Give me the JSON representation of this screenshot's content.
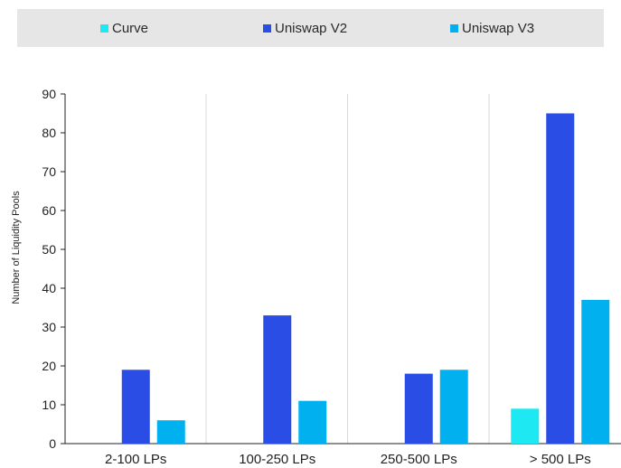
{
  "chart_data": {
    "type": "bar",
    "title": "",
    "xlabel": "",
    "ylabel": "Number of Liquidity Pools",
    "categories": [
      "2-100 LPs",
      "100-250 LPs",
      "250-500 LPs",
      "> 500 LPs"
    ],
    "series": [
      {
        "name": "Curve",
        "color": "#1ee8f2",
        "values": [
          0,
          0,
          0,
          9
        ]
      },
      {
        "name": "Uniswap V2",
        "color": "#2a4de6",
        "values": [
          19,
          33,
          18,
          85
        ]
      },
      {
        "name": "Uniswap V3",
        "color": "#00b0ef",
        "values": [
          6,
          11,
          19,
          37
        ]
      }
    ],
    "ylim": [
      0,
      90
    ],
    "yticks": [
      "0",
      "10",
      "20",
      "30",
      "40",
      "50",
      "60",
      "70",
      "80",
      "90"
    ],
    "grid": "vertical separators between categories",
    "legend_position": "top"
  }
}
